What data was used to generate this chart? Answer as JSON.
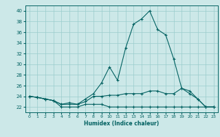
{
  "xlabel": "Humidex (Indice chaleur)",
  "background_color": "#cce8e8",
  "line_color": "#006060",
  "grid_color": "#99cccc",
  "xlim": [
    -0.5,
    23.5
  ],
  "ylim": [
    21.0,
    41.0
  ],
  "yticks": [
    22,
    24,
    26,
    28,
    30,
    32,
    34,
    36,
    38,
    40
  ],
  "xticks": [
    0,
    1,
    2,
    3,
    4,
    5,
    6,
    7,
    8,
    9,
    10,
    11,
    12,
    13,
    14,
    15,
    16,
    17,
    18,
    19,
    20,
    21,
    22,
    23
  ],
  "series_max": [
    24.0,
    23.8,
    23.5,
    23.2,
    22.5,
    22.5,
    22.5,
    23.5,
    24.5,
    26.5,
    29.5,
    27.0,
    33.0,
    37.5,
    38.5,
    40.0,
    36.5,
    35.5,
    31.0,
    25.5,
    25.0,
    23.5,
    22.0,
    22.0
  ],
  "series_mid": [
    24.0,
    23.8,
    23.5,
    23.2,
    22.5,
    22.8,
    22.5,
    23.0,
    24.0,
    24.0,
    24.2,
    24.2,
    24.5,
    24.5,
    24.5,
    25.0,
    25.0,
    24.5,
    24.5,
    25.5,
    24.5,
    23.5,
    22.0,
    22.0
  ],
  "series_min": [
    24.0,
    23.8,
    23.5,
    23.2,
    22.0,
    22.0,
    22.0,
    22.5,
    22.5,
    22.5,
    22.0,
    22.0,
    22.0,
    22.0,
    22.0,
    22.0,
    22.0,
    22.0,
    22.0,
    22.0,
    22.0,
    22.0,
    22.0,
    22.0
  ]
}
